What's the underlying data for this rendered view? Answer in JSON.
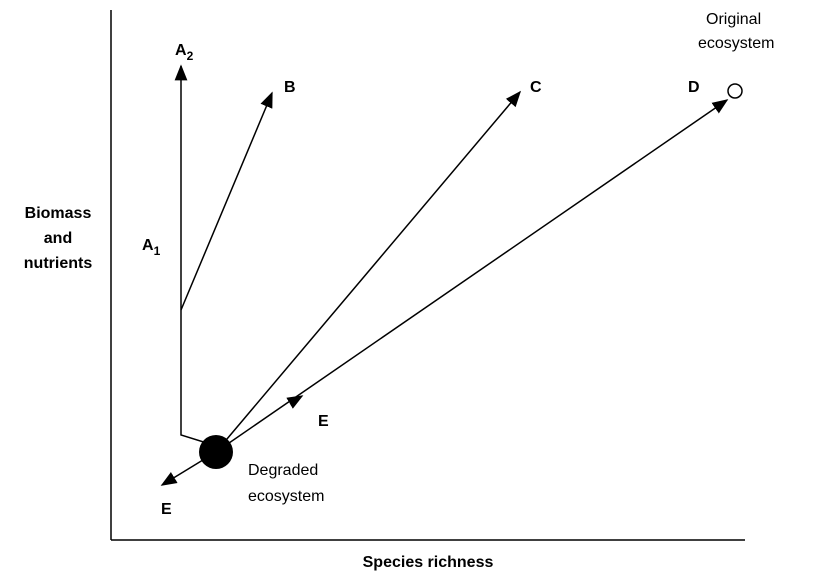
{
  "axes": {
    "y_label": [
      "Biomass",
      "and",
      "nutrients"
    ],
    "x_label": "Species richness"
  },
  "nodes": {
    "degraded": [
      "Degraded",
      "ecosystem"
    ],
    "original": [
      "Original",
      "ecosystem"
    ]
  },
  "labels": {
    "a2": {
      "main": "A",
      "sub": "2"
    },
    "a1": {
      "main": "A",
      "sub": "1"
    },
    "b": "B",
    "c": "C",
    "d": "D",
    "e_up": "E",
    "e_down": "E"
  }
}
